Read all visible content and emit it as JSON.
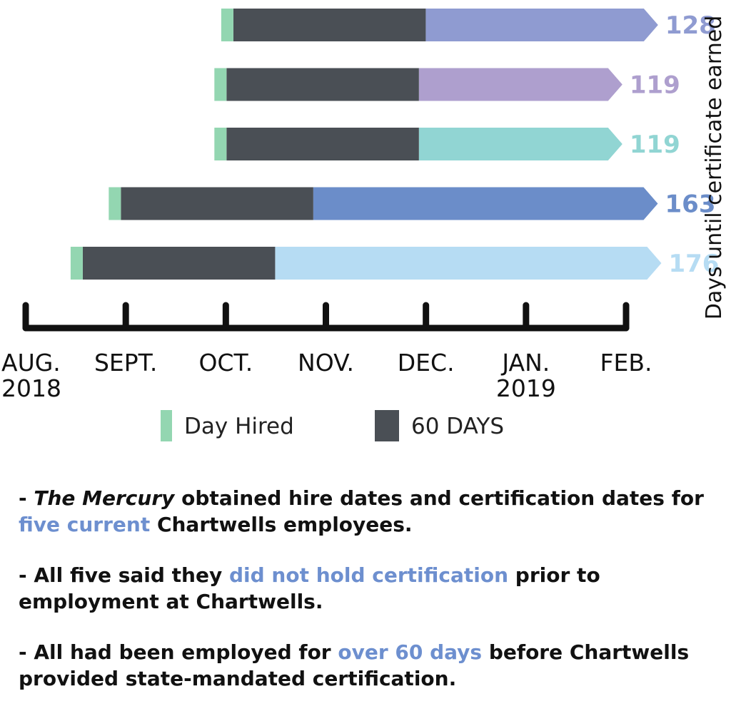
{
  "chart_data": {
    "type": "bar",
    "orientation": "horizontal",
    "title": "",
    "ylabel": "Days until certificate earned",
    "x_axis": {
      "ticks": [
        {
          "line1": "AUG.",
          "line2": "2018"
        },
        {
          "line1": "SEPT.",
          "line2": ""
        },
        {
          "line1": "OCT.",
          "line2": ""
        },
        {
          "line1": "NOV.",
          "line2": ""
        },
        {
          "line1": "DEC.",
          "line2": ""
        },
        {
          "line1": "JAN.",
          "line2": "2019"
        },
        {
          "line1": "FEB.",
          "line2": ""
        }
      ],
      "range_months": [
        0,
        6
      ]
    },
    "legend": {
      "placement": "bottom",
      "items": [
        {
          "label": "Day Hired",
          "color": "#93d6b1"
        },
        {
          "label": "60 DAYS",
          "color": "#4a4f55"
        }
      ]
    },
    "series": [
      {
        "hire_month": 1.97,
        "days_until_certified": 128,
        "value_label": "128",
        "color": "#8f9bd1"
      },
      {
        "hire_month": 1.9,
        "days_until_certified": 119,
        "value_label": "119",
        "color": "#ae9fce"
      },
      {
        "hire_month": 1.9,
        "days_until_certified": 119,
        "value_label": "119",
        "color": "#91d5d3"
      },
      {
        "hire_month": 0.82,
        "days_until_certified": 163,
        "value_label": "163",
        "color": "#6b8dc9"
      },
      {
        "hire_month": 0.43,
        "days_until_certified": 176,
        "value_label": "176",
        "color": "#b6dcf3"
      }
    ],
    "grid": false
  },
  "notes": [
    {
      "parts": [
        {
          "text": " - ",
          "style": "plain"
        },
        {
          "text": "The Mercury",
          "style": "italic"
        },
        {
          "text": " obtained hire dates and certification dates for ",
          "style": "plain"
        },
        {
          "text": "five current",
          "style": "highlight"
        },
        {
          "text": " Chartwells employees.",
          "style": "plain"
        }
      ]
    },
    {
      "parts": [
        {
          "text": " - All five said they ",
          "style": "plain"
        },
        {
          "text": "did not hold certification",
          "style": "highlight"
        },
        {
          "text": " prior to employment at Chartwells.",
          "style": "plain"
        }
      ]
    },
    {
      "parts": [
        {
          "text": " - All had been employed for ",
          "style": "plain"
        },
        {
          "text": "over 60 days",
          "style": "highlight"
        },
        {
          "text": " before Chartwells provided state-mandated certification.",
          "style": "plain"
        }
      ]
    }
  ],
  "colors": {
    "axis": "#111111",
    "hired": "#93d6b1",
    "sixty_days": "#4a4f55",
    "highlight": "#6d8fcf"
  }
}
